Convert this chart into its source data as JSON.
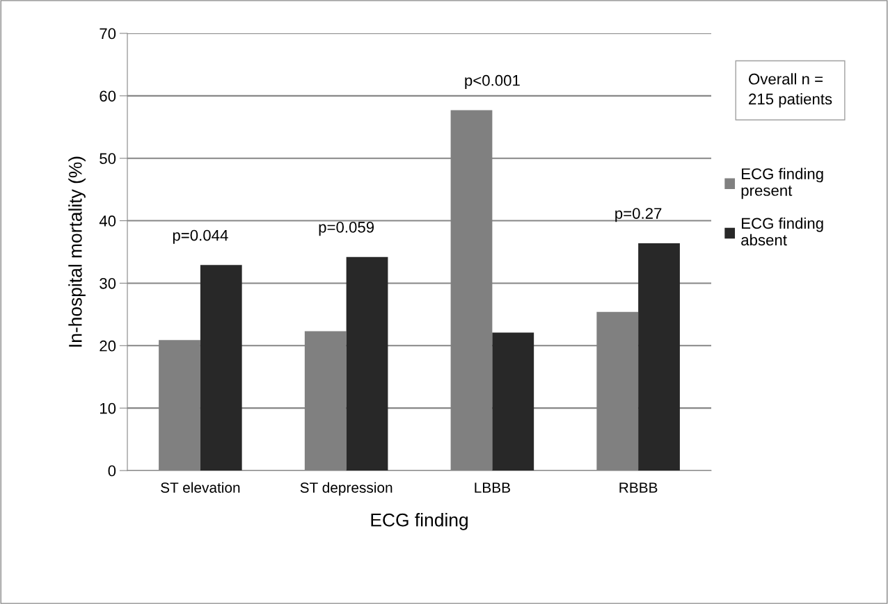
{
  "chart_data": {
    "type": "bar",
    "xlabel": "ECG finding",
    "ylabel": "In-hospital mortality (%)",
    "categories": [
      "ST elevation",
      "ST depression",
      "LBBB",
      "RBBB"
    ],
    "series": [
      {
        "name": "ECG finding present",
        "color": "#808080",
        "values": [
          20.9,
          22.3,
          57.7,
          25.4
        ]
      },
      {
        "name": "ECG finding absent",
        "color": "#282828",
        "values": [
          32.9,
          34.2,
          22.1,
          36.4
        ]
      }
    ],
    "ylim": [
      0,
      70
    ],
    "yticks": [
      0,
      10,
      20,
      30,
      40,
      50,
      60,
      70
    ],
    "grid": "y",
    "legend": "right",
    "annotations": [
      "p=0.044",
      "p=0.059",
      "p<0.001",
      "p=0.27",
      "Overall n =\n215 patients"
    ]
  }
}
